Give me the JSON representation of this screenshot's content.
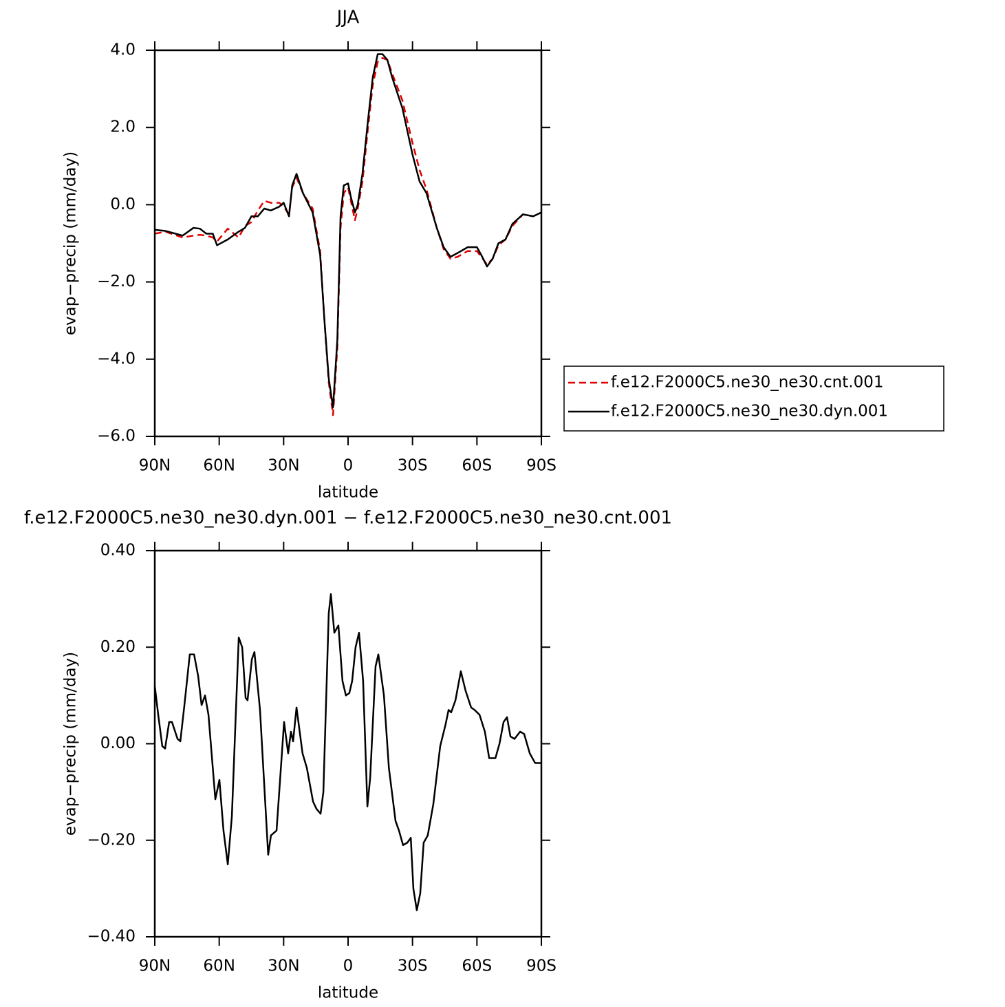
{
  "chart_data": [
    {
      "type": "line",
      "title": "JJA",
      "xlabel": "latitude",
      "ylabel": "evap−precip (mm/day)",
      "xlim": [
        90,
        -90
      ],
      "ylim": [
        -6,
        4
      ],
      "xticks": [
        {
          "value": 90,
          "label": "90N"
        },
        {
          "value": 60,
          "label": "60N"
        },
        {
          "value": 30,
          "label": "30N"
        },
        0,
        {
          "value": -30,
          "label": "30S"
        },
        {
          "value": -60,
          "label": "60S"
        },
        {
          "value": -90,
          "label": "90S"
        }
      ],
      "yticks": [
        {
          "value": 4,
          "label": "4.0"
        },
        {
          "value": 2,
          "label": "2.0"
        },
        {
          "value": 0,
          "label": "0.0"
        },
        {
          "value": -2,
          "label": "−2.0"
        },
        {
          "value": -4,
          "label": "−4.0"
        },
        {
          "value": -6,
          "label": "−6.0"
        }
      ],
      "legend": "right",
      "x": [
        90,
        85,
        77,
        72,
        69,
        66,
        63,
        61,
        56,
        51,
        48,
        45,
        42,
        39,
        36,
        32,
        30,
        27.5,
        26,
        24,
        21,
        16.5,
        13,
        11,
        9,
        7,
        5,
        3.5,
        2,
        0,
        -1.3,
        -3.2,
        -4.5,
        -6.7,
        -9.3,
        -11.5,
        -13.8,
        -16,
        -18.3,
        -20.5,
        -25.3,
        -30,
        -33.3,
        -36.5,
        -41.3,
        -44.5,
        -47.7,
        -51,
        -55.7,
        -60,
        -62,
        -64.7,
        -67.3,
        -70,
        -73.3,
        -76.5,
        -81.4,
        -86.2,
        -90
      ],
      "series": [
        {
          "name": "f.e12.F2000C5.ne30_ne30.cnt.001",
          "color": "#e00000",
          "dashed": true,
          "values": [
            -0.75,
            -0.7,
            -0.85,
            -0.8,
            -0.78,
            -0.8,
            -0.85,
            -0.95,
            -0.62,
            -0.85,
            -0.55,
            -0.45,
            -0.15,
            0.1,
            0.05,
            0.05,
            -0.05,
            -0.25,
            0.45,
            0.7,
            0.3,
            -0.1,
            -1.2,
            -3.0,
            -4.6,
            -5.45,
            -3.7,
            -0.6,
            0.3,
            0.45,
            0.1,
            -0.4,
            -0.1,
            0.6,
            2.0,
            3.1,
            3.7,
            3.8,
            3.75,
            3.4,
            2.7,
            1.6,
            0.9,
            0.4,
            -0.6,
            -1.15,
            -1.4,
            -1.35,
            -1.2,
            -1.2,
            -1.35,
            -1.55,
            -1.4,
            -1.05,
            -0.9,
            -0.55,
            -0.25,
            -0.3,
            -0.2
          ]
        },
        {
          "name": "f.e12.F2000C5.ne30_ne30.dyn.001",
          "color": "#000000",
          "dashed": false,
          "values": [
            -0.65,
            -0.68,
            -0.8,
            -0.6,
            -0.62,
            -0.75,
            -0.75,
            -1.05,
            -0.9,
            -0.7,
            -0.6,
            -0.3,
            -0.3,
            -0.1,
            -0.15,
            -0.05,
            0.05,
            -0.3,
            0.5,
            0.8,
            0.3,
            -0.2,
            -1.3,
            -3.0,
            -4.5,
            -5.25,
            -3.5,
            -0.3,
            0.5,
            0.55,
            0.2,
            -0.2,
            0.0,
            0.8,
            2.2,
            3.3,
            3.9,
            3.9,
            3.75,
            3.3,
            2.5,
            1.3,
            0.6,
            0.3,
            -0.6,
            -1.1,
            -1.35,
            -1.25,
            -1.1,
            -1.1,
            -1.3,
            -1.6,
            -1.4,
            -1.0,
            -0.9,
            -0.5,
            -0.25,
            -0.3,
            -0.2
          ]
        }
      ]
    },
    {
      "type": "line",
      "title": "f.e12.F2000C5.ne30_ne30.dyn.001 − f.e12.F2000C5.ne30_ne30.cnt.001",
      "xlabel": "latitude",
      "ylabel": "evap−precip (mm/day)",
      "xlim": [
        90,
        -90
      ],
      "ylim": [
        -0.4,
        0.4
      ],
      "xticks": [
        {
          "value": 90,
          "label": "90N"
        },
        {
          "value": 60,
          "label": "60N"
        },
        {
          "value": 30,
          "label": "30N"
        },
        0,
        {
          "value": -30,
          "label": "30S"
        },
        {
          "value": -60,
          "label": "60S"
        },
        {
          "value": -90,
          "label": "90S"
        }
      ],
      "yticks": [
        {
          "value": 0.4,
          "label": "0.40"
        },
        {
          "value": 0.2,
          "label": "0.20"
        },
        {
          "value": 0,
          "label": "0.00"
        },
        {
          "value": -0.2,
          "label": "−0.20"
        },
        {
          "value": -0.4,
          "label": "−0.40"
        }
      ],
      "x": [
        90,
        88.4,
        86.5,
        85.2,
        83.3,
        82,
        79.4,
        78.1,
        76.2,
        73.7,
        71.7,
        69.8,
        68.2,
        66.6,
        65,
        61.8,
        59.9,
        58,
        56,
        54.1,
        50.9,
        49.3,
        47.7,
        46.8,
        44.8,
        43.6,
        41,
        37.2,
        35.9,
        33.3,
        29.8,
        27.9,
        26.6,
        25.6,
        24,
        21.2,
        19.2,
        16.3,
        14.7,
        12.8,
        11.5,
        9,
        8,
        6.4,
        4.5,
        2.6,
        1,
        -0.6,
        -1.9,
        -3.5,
        -5.1,
        -7,
        -9,
        -10.3,
        -12.8,
        -14.1,
        -16.7,
        -19,
        -22.1,
        -23.7,
        -25.6,
        -27.6,
        -29.2,
        -30.4,
        -32,
        -33.6,
        -35.2,
        -37.1,
        -39.7,
        -42.9,
        -45.4,
        -46.8,
        -48,
        -50,
        -52.5,
        -54.7,
        -57.3,
        -58.9,
        -61.2,
        -63.7,
        -65.7,
        -68.6,
        -70.5,
        -72.4,
        -74,
        -75.6,
        -77.5,
        -80.1,
        -82,
        -84.6,
        -87.1,
        -90
      ],
      "series": [
        {
          "color": "#000000",
          "dashed": false,
          "values": [
            0.12,
            0.06,
            -0.005,
            -0.01,
            0.045,
            0.045,
            0.01,
            0.005,
            0.08,
            0.185,
            0.185,
            0.14,
            0.08,
            0.1,
            0.06,
            -0.115,
            -0.075,
            -0.18,
            -0.25,
            -0.15,
            0.22,
            0.2,
            0.095,
            0.09,
            0.175,
            0.19,
            0.07,
            -0.23,
            -0.19,
            -0.18,
            0.045,
            -0.02,
            0.025,
            0.005,
            0.075,
            -0.02,
            -0.05,
            -0.12,
            -0.135,
            -0.145,
            -0.1,
            0.27,
            0.31,
            0.23,
            0.245,
            0.13,
            0.1,
            0.105,
            0.13,
            0.2,
            0.23,
            0.13,
            -0.13,
            -0.07,
            0.16,
            0.185,
            0.1,
            -0.05,
            -0.16,
            -0.18,
            -0.21,
            -0.205,
            -0.195,
            -0.3,
            -0.345,
            -0.31,
            -0.205,
            -0.19,
            -0.125,
            -0.005,
            0.04,
            0.07,
            0.065,
            0.09,
            0.15,
            0.11,
            0.075,
            0.07,
            0.06,
            0.025,
            -0.03,
            -0.03,
            0,
            0.045,
            0.055,
            0.015,
            0.01,
            0.025,
            0.02,
            -0.02,
            -0.04,
            -0.04
          ]
        }
      ]
    }
  ]
}
